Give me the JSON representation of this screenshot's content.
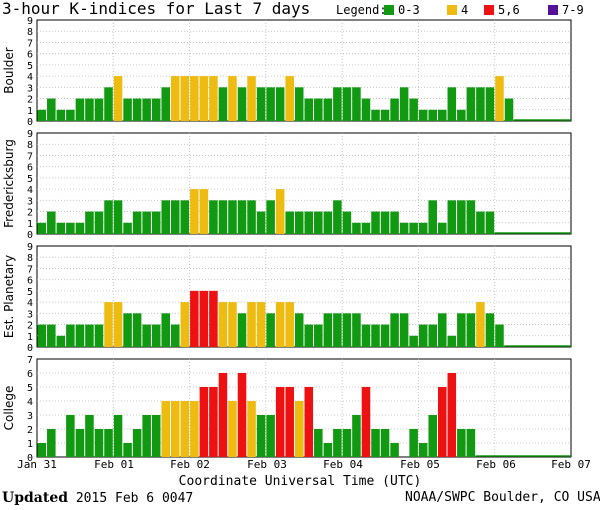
{
  "title": "3-hour K-indices for Last 7 days",
  "legend": {
    "label": "Legend:",
    "items": [
      {
        "label": "0-3",
        "color": "#119911"
      },
      {
        "label": "4",
        "color": "#eebb11"
      },
      {
        "label": "5,6",
        "color": "#ee1111"
      },
      {
        "label": "7-9",
        "color": "#551199"
      }
    ]
  },
  "footer": {
    "updated_label": "Updated",
    "updated_value": "2015 Feb  6 0047",
    "source": "NOAA/SWPC Boulder, CO USA"
  },
  "chart_data": [
    {
      "type": "bar",
      "station": "Boulder",
      "ylim": [
        0,
        9
      ],
      "yticks": [
        0,
        1,
        2,
        3,
        4,
        5,
        6,
        7,
        8,
        9
      ],
      "values": [
        1,
        2,
        1,
        1,
        2,
        2,
        2,
        3,
        4,
        2,
        2,
        2,
        2,
        3,
        4,
        4,
        4,
        4,
        4,
        3,
        4,
        3,
        4,
        3,
        3,
        3,
        4,
        3,
        2,
        2,
        2,
        3,
        3,
        3,
        2,
        1,
        1,
        2,
        3,
        2,
        1,
        1,
        1,
        3,
        1,
        3,
        3,
        3,
        4,
        2
      ]
    },
    {
      "type": "bar",
      "station": "Fredericksburg",
      "ylim": [
        0,
        9
      ],
      "yticks": [
        0,
        1,
        2,
        3,
        4,
        5,
        6,
        7,
        8,
        9
      ],
      "values": [
        1,
        2,
        1,
        1,
        1,
        2,
        2,
        3,
        3,
        1,
        2,
        2,
        2,
        3,
        3,
        3,
        4,
        4,
        3,
        3,
        3,
        3,
        3,
        2,
        3,
        4,
        2,
        2,
        2,
        2,
        2,
        3,
        2,
        1,
        1,
        2,
        2,
        2,
        1,
        1,
        1,
        3,
        1,
        3,
        3,
        3,
        2,
        2
      ]
    },
    {
      "type": "bar",
      "station": "Est. Planetary",
      "ylim": [
        0,
        9
      ],
      "yticks": [
        0,
        1,
        2,
        3,
        4,
        5,
        6,
        7,
        8,
        9
      ],
      "values": [
        2,
        2,
        1,
        2,
        2,
        2,
        2,
        4,
        4,
        3,
        3,
        2,
        2,
        3,
        2,
        4,
        5,
        5,
        5,
        4,
        4,
        3,
        4,
        4,
        3,
        4,
        4,
        3,
        2,
        2,
        3,
        3,
        3,
        3,
        2,
        2,
        2,
        3,
        3,
        1,
        2,
        2,
        3,
        1,
        3,
        3,
        4,
        3,
        2
      ]
    },
    {
      "type": "bar",
      "station": "College",
      "ylim": [
        0,
        7
      ],
      "yticks": [
        0,
        1,
        2,
        3,
        4,
        5,
        6,
        7
      ],
      "values": [
        1,
        2,
        0,
        3,
        2,
        3,
        2,
        2,
        3,
        1,
        2,
        3,
        3,
        4,
        4,
        4,
        4,
        5,
        5,
        6,
        4,
        6,
        4,
        3,
        3,
        5,
        5,
        4,
        5,
        2,
        1,
        2,
        2,
        3,
        5,
        2,
        2,
        1,
        0,
        2,
        1,
        3,
        5,
        6,
        2,
        2
      ]
    }
  ],
  "x_axis": {
    "ticks": [
      "Jan 31",
      "Feb 01",
      "Feb 02",
      "Feb 03",
      "Feb 04",
      "Feb 05",
      "Feb 06",
      "Feb 07"
    ],
    "label": "Coordinate Universal Time (UTC)"
  }
}
